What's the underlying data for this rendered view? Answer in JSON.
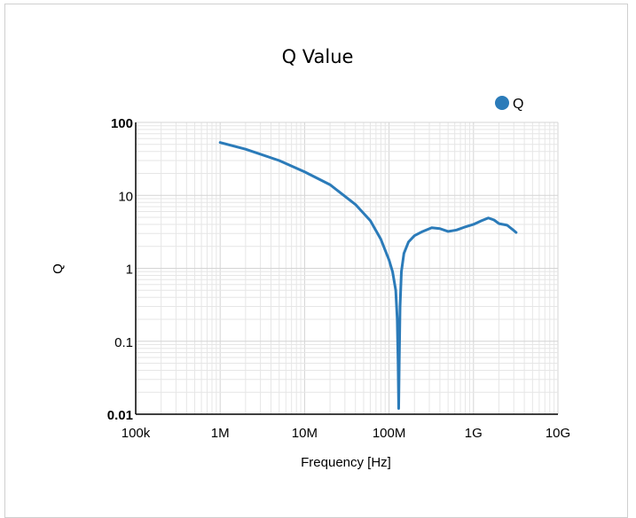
{
  "chart_data": {
    "type": "line",
    "title": "Q Value",
    "xlabel": "Frequency [Hz]",
    "ylabel": "Q",
    "x_scale": "log",
    "y_scale": "log",
    "xlim": [
      100000,
      10000000000
    ],
    "ylim": [
      0.01,
      100
    ],
    "x_ticks": [
      {
        "value": 100000,
        "label": "100k"
      },
      {
        "value": 1000000,
        "label": "1M"
      },
      {
        "value": 10000000,
        "label": "10M"
      },
      {
        "value": 100000000,
        "label": "100M"
      },
      {
        "value": 1000000000,
        "label": "1G"
      },
      {
        "value": 10000000000,
        "label": "10G"
      }
    ],
    "y_ticks": [
      {
        "value": 100,
        "label": "100"
      },
      {
        "value": 10,
        "label": "10"
      },
      {
        "value": 1,
        "label": "1"
      },
      {
        "value": 0.1,
        "label": "0.1"
      },
      {
        "value": 0.01,
        "label": "0.01"
      }
    ],
    "grid": true,
    "legend_position": "top-right",
    "series": [
      {
        "name": "Q",
        "color": "#2b7bb9",
        "points": [
          [
            1000000,
            53
          ],
          [
            2000000,
            43
          ],
          [
            5000000,
            30
          ],
          [
            10000000,
            21
          ],
          [
            20000000,
            14
          ],
          [
            40000000,
            7.5
          ],
          [
            60000000,
            4.5
          ],
          [
            80000000,
            2.5
          ],
          [
            100000000,
            1.3
          ],
          [
            110000000,
            0.9
          ],
          [
            120000000,
            0.5
          ],
          [
            125000000,
            0.2
          ],
          [
            128000000,
            0.05
          ],
          [
            130000000,
            0.012
          ],
          [
            132000000,
            0.05
          ],
          [
            135000000,
            0.3
          ],
          [
            140000000,
            0.9
          ],
          [
            150000000,
            1.6
          ],
          [
            170000000,
            2.3
          ],
          [
            200000000,
            2.8
          ],
          [
            250000000,
            3.2
          ],
          [
            320000000,
            3.6
          ],
          [
            400000000,
            3.5
          ],
          [
            500000000,
            3.2
          ],
          [
            630000000,
            3.35
          ],
          [
            800000000,
            3.7
          ],
          [
            1000000000,
            4.0
          ],
          [
            1250000000,
            4.5
          ],
          [
            1500000000,
            4.9
          ],
          [
            1750000000,
            4.6
          ],
          [
            2000000000,
            4.1
          ],
          [
            2500000000,
            3.9
          ],
          [
            3000000000,
            3.3
          ],
          [
            3200000000,
            3.1
          ]
        ]
      }
    ]
  }
}
